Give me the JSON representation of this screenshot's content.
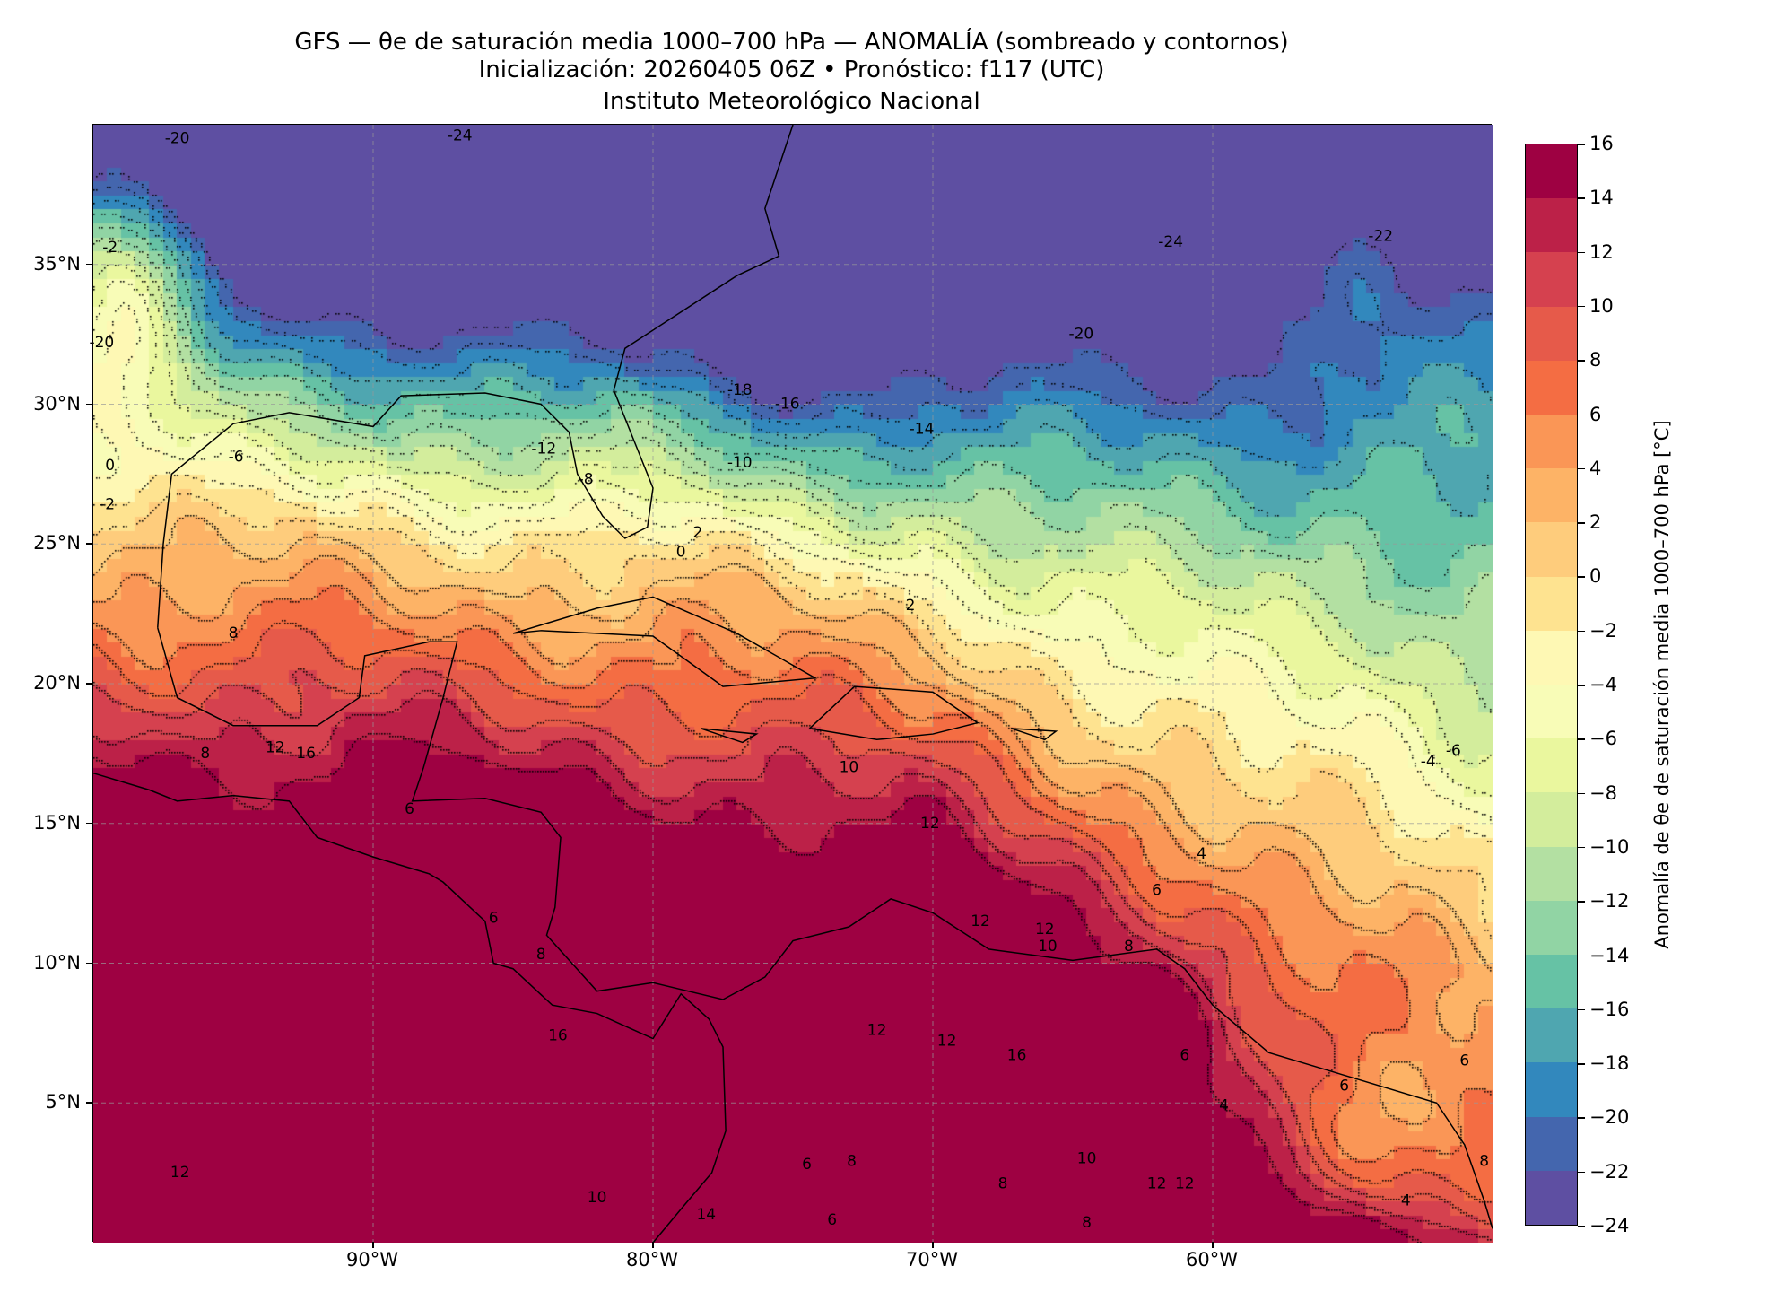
{
  "title": {
    "line1": "GFS — θe de saturación media 1000–700 hPa — ANOMALÍA (sombreado y contornos)",
    "line2": "Inicialización: 20260405 06Z   •   Pronóstico: f117 (UTC)",
    "line3": "Instituto Meteorológico Nacional"
  },
  "map": {
    "extent_lon": [
      -100,
      -50
    ],
    "extent_lat": [
      0,
      40
    ],
    "lon_ticks": [
      {
        "value": -90,
        "label": "90°W"
      },
      {
        "value": -80,
        "label": "80°W"
      },
      {
        "value": -70,
        "label": "70°W"
      },
      {
        "value": -60,
        "label": "60°W"
      }
    ],
    "lat_ticks": [
      {
        "value": 5,
        "label": "5°N"
      },
      {
        "value": 10,
        "label": "10°N"
      },
      {
        "value": 15,
        "label": "15°N"
      },
      {
        "value": 20,
        "label": "20°N"
      },
      {
        "value": 25,
        "label": "25°N"
      },
      {
        "value": 30,
        "label": "30°N"
      },
      {
        "value": 35,
        "label": "35°N"
      }
    ],
    "contour_labels": [
      {
        "t": "-24",
        "lon": -86.9,
        "lat": 39.6
      },
      {
        "t": "-20",
        "lon": -97.0,
        "lat": 39.5
      },
      {
        "t": "-24",
        "lon": -61.5,
        "lat": 35.8
      },
      {
        "t": "-22",
        "lon": -54.0,
        "lat": 36.0
      },
      {
        "t": "-20",
        "lon": -64.7,
        "lat": 32.5
      },
      {
        "t": "-18",
        "lon": -76.9,
        "lat": 30.5
      },
      {
        "t": "-16",
        "lon": -75.2,
        "lat": 30.0
      },
      {
        "t": "-14",
        "lon": -70.4,
        "lat": 29.1
      },
      {
        "t": "-12",
        "lon": -83.9,
        "lat": 28.4
      },
      {
        "t": "-10",
        "lon": -76.9,
        "lat": 27.9
      },
      {
        "t": "-8",
        "lon": -82.4,
        "lat": 27.3
      },
      {
        "t": "-6",
        "lon": -94.9,
        "lat": 28.1
      },
      {
        "t": "-6",
        "lon": -51.4,
        "lat": 17.6
      },
      {
        "t": "-4",
        "lon": -52.3,
        "lat": 17.2
      },
      {
        "t": "2",
        "lon": -78.4,
        "lat": 25.4
      },
      {
        "t": "0",
        "lon": -79.0,
        "lat": 24.7
      },
      {
        "t": "2",
        "lon": -70.8,
        "lat": 22.8
      },
      {
        "t": "8",
        "lon": -95.0,
        "lat": 21.8
      },
      {
        "t": "8",
        "lon": -96.0,
        "lat": 17.5
      },
      {
        "t": "12",
        "lon": -93.5,
        "lat": 17.7
      },
      {
        "t": "16",
        "lon": -92.4,
        "lat": 17.5
      },
      {
        "t": "6",
        "lon": -88.7,
        "lat": 15.5
      },
      {
        "t": "10",
        "lon": -73.0,
        "lat": 17.0
      },
      {
        "t": "12",
        "lon": -70.1,
        "lat": 15.0
      },
      {
        "t": "4",
        "lon": -60.4,
        "lat": 13.9
      },
      {
        "t": "6",
        "lon": -62.0,
        "lat": 12.6
      },
      {
        "t": "12",
        "lon": -68.3,
        "lat": 11.5
      },
      {
        "t": "12",
        "lon": -66.0,
        "lat": 11.2
      },
      {
        "t": "10",
        "lon": -65.9,
        "lat": 10.6
      },
      {
        "t": "8",
        "lon": -63.0,
        "lat": 10.6
      },
      {
        "t": "6",
        "lon": -85.7,
        "lat": 11.6
      },
      {
        "t": "8",
        "lon": -84.0,
        "lat": 10.3
      },
      {
        "t": "16",
        "lon": -83.4,
        "lat": 7.4
      },
      {
        "t": "12",
        "lon": -72.0,
        "lat": 7.6
      },
      {
        "t": "12",
        "lon": -69.5,
        "lat": 7.2
      },
      {
        "t": "16",
        "lon": -67.0,
        "lat": 6.7
      },
      {
        "t": "6",
        "lon": -61.0,
        "lat": 6.7
      },
      {
        "t": "6",
        "lon": -55.3,
        "lat": 5.6
      },
      {
        "t": "6",
        "lon": -51.0,
        "lat": 6.5
      },
      {
        "t": "4",
        "lon": -59.6,
        "lat": 4.9
      },
      {
        "t": "12",
        "lon": -96.9,
        "lat": 2.5
      },
      {
        "t": "10",
        "lon": -82.0,
        "lat": 1.6
      },
      {
        "t": "10",
        "lon": -64.5,
        "lat": 3.0
      },
      {
        "t": "12",
        "lon": -62.0,
        "lat": 2.1
      },
      {
        "t": "12",
        "lon": -61.0,
        "lat": 2.1
      },
      {
        "t": "8",
        "lon": -67.5,
        "lat": 2.1
      },
      {
        "t": "8",
        "lon": -64.5,
        "lat": 0.7
      },
      {
        "t": "6",
        "lon": -74.5,
        "lat": 2.8
      },
      {
        "t": "8",
        "lon": -72.9,
        "lat": 2.9
      },
      {
        "t": "6",
        "lon": -73.6,
        "lat": 0.8
      },
      {
        "t": "4",
        "lon": -53.1,
        "lat": 1.5
      },
      {
        "t": "8",
        "lon": -50.3,
        "lat": 2.9
      },
      {
        "t": "14",
        "lon": -78.1,
        "lat": 1.0
      },
      {
        "t": "-2",
        "lon": -99.5,
        "lat": 26.4
      },
      {
        "t": "0",
        "lon": -99.4,
        "lat": 27.8
      },
      {
        "t": "-20",
        "lon": -99.7,
        "lat": 32.2
      },
      {
        "t": "-2",
        "lon": -99.4,
        "lat": 35.6
      }
    ]
  },
  "colorbar": {
    "label": "Anomalía de θe de saturación media 1000–700 hPa [°C]",
    "levels": [
      -24,
      -22,
      -20,
      -18,
      -16,
      -14,
      -12,
      -10,
      -8,
      -6,
      -4,
      -2,
      0,
      2,
      4,
      6,
      8,
      10,
      12,
      14,
      16
    ],
    "tick_labels": [
      "−24",
      "−22",
      "−20",
      "−18",
      "−16",
      "−14",
      "−12",
      "−10",
      "−8",
      "−6",
      "−4",
      "−2",
      "0",
      "2",
      "4",
      "6",
      "8",
      "10",
      "12",
      "14",
      "16"
    ],
    "colors": [
      "#5e4fa2",
      "#4466ae",
      "#3288bd",
      "#4fa6b0",
      "#66c2a5",
      "#91d4a4",
      "#b3e0a2",
      "#d3ed9c",
      "#eaf79e",
      "#f8fcb7",
      "#fef8b4",
      "#fee390",
      "#fecc7c",
      "#fdb366",
      "#fa9656",
      "#f46d43",
      "#e65a4a",
      "#d5414f",
      "#bc2148",
      "#9e0142"
    ]
  }
}
